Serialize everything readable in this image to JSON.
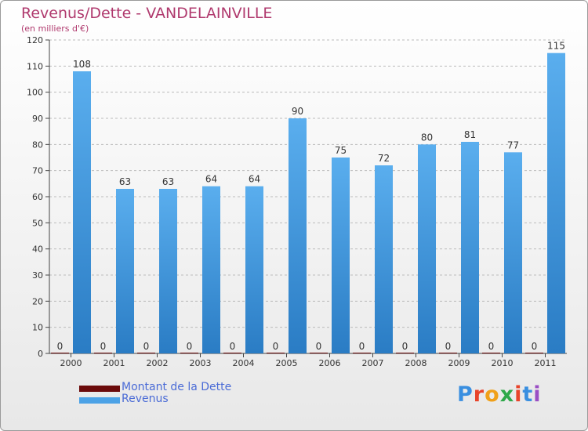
{
  "title": "Revenus/Dette - VANDELAINVILLE",
  "subtitle": "(en milliers d'€)",
  "logo": {
    "text": "Proxiti",
    "colors": [
      "#3a8fe0",
      "#e8442a",
      "#f0a019",
      "#2ea84a",
      "#e8442a",
      "#3a8fe0",
      "#9a4fc4"
    ]
  },
  "colors": {
    "debt": "#6b0a0a",
    "revenue": "#4ca2e6",
    "revenue_dark": "#2a7cc4",
    "title": "#b03a6e",
    "legend_text": "#4a6bd6"
  },
  "legend": [
    {
      "label": "Montant de la Dette",
      "color": "#6b0a0a"
    },
    {
      "label": "Revenus",
      "color": "#4ca2e6"
    }
  ],
  "chart_data": {
    "type": "bar",
    "title": "Revenus/Dette - VANDELAINVILLE",
    "ylabel": "(en milliers d'€)",
    "categories": [
      "2000",
      "2001",
      "2002",
      "2003",
      "2004",
      "2005",
      "2006",
      "2007",
      "2008",
      "2009",
      "2010",
      "2011"
    ],
    "series": [
      {
        "name": "Montant de la Dette",
        "values": [
          0,
          0,
          0,
          0,
          0,
          0,
          0,
          0,
          0,
          0,
          0,
          0
        ]
      },
      {
        "name": "Revenus",
        "values": [
          108,
          63,
          63,
          64,
          64,
          90,
          75,
          72,
          80,
          81,
          77,
          115
        ]
      }
    ],
    "ylim": [
      0,
      120
    ],
    "yticks": [
      0,
      10,
      20,
      30,
      40,
      50,
      60,
      70,
      80,
      90,
      100,
      110,
      120
    ],
    "grid": "horizontal-dashed",
    "legend_position": "bottom-left"
  }
}
